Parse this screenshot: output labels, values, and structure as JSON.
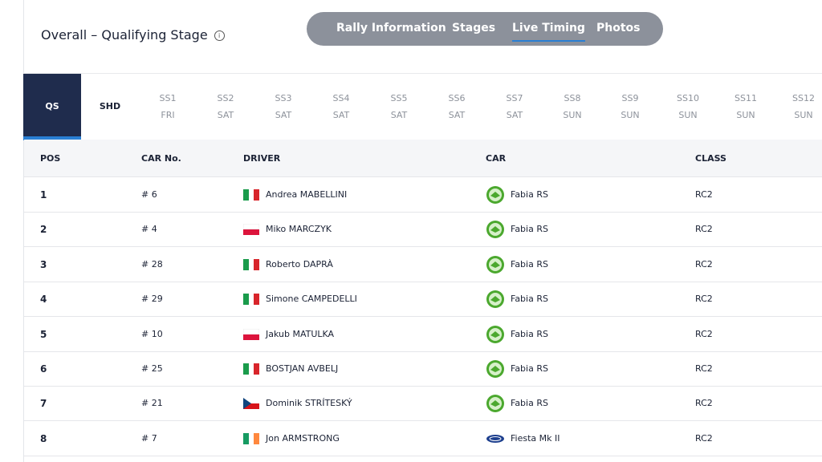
{
  "header": {
    "title": "Overall – Qualifying Stage",
    "info_icon": "i"
  },
  "nav": [
    "Rally Information",
    "Stages",
    "Live Timing",
    "Photos"
  ],
  "stage_tabs": [
    {
      "label": "QS"
    },
    {
      "label": "SHD"
    },
    {
      "label": "SS1",
      "day": "FRI"
    },
    {
      "label": "SS2",
      "day": "SAT"
    },
    {
      "label": "SS3",
      "day": "SAT"
    },
    {
      "label": "SS4",
      "day": "SAT"
    },
    {
      "label": "SS5",
      "day": "SAT"
    },
    {
      "label": "SS6",
      "day": "SAT"
    },
    {
      "label": "SS7",
      "day": "SAT"
    },
    {
      "label": "SS8",
      "day": "SUN"
    },
    {
      "label": "SS9",
      "day": "SUN"
    },
    {
      "label": "SS10",
      "day": "SUN"
    },
    {
      "label": "SS11",
      "day": "SUN"
    },
    {
      "label": "SS12",
      "day": "SUN"
    }
  ],
  "table": {
    "columns": [
      "POS",
      "CAR No.",
      "DRIVER",
      "CAR",
      "CLASS"
    ],
    "rows": [
      [
        "1",
        "# 6",
        "Andrea MABELLINI",
        "Fabia RS",
        "RC2"
      ],
      [
        "2",
        "# 4",
        "Miko MARCZYK",
        "Fabia RS",
        "RC2"
      ],
      [
        "3",
        "# 28",
        "Roberto DAPRÀ",
        "Fabia RS",
        "RC2"
      ],
      [
        "4",
        "# 29",
        "Simone CAMPEDELLI",
        "Fabia RS",
        "RC2"
      ],
      [
        "5",
        "# 10",
        "Jakub MATULKA",
        "Fabia RS",
        "RC2"
      ],
      [
        "6",
        "# 25",
        "BOSTJAN AVBELJ",
        "Fabia RS",
        "RC2"
      ],
      [
        "7",
        "# 21",
        "Dominik STRÍTESKÝ",
        "Fabia RS",
        "RC2"
      ],
      [
        "8",
        "# 7",
        "Jon ARMSTRONG",
        "Fiesta Mk II",
        "RC2"
      ]
    ]
  }
}
